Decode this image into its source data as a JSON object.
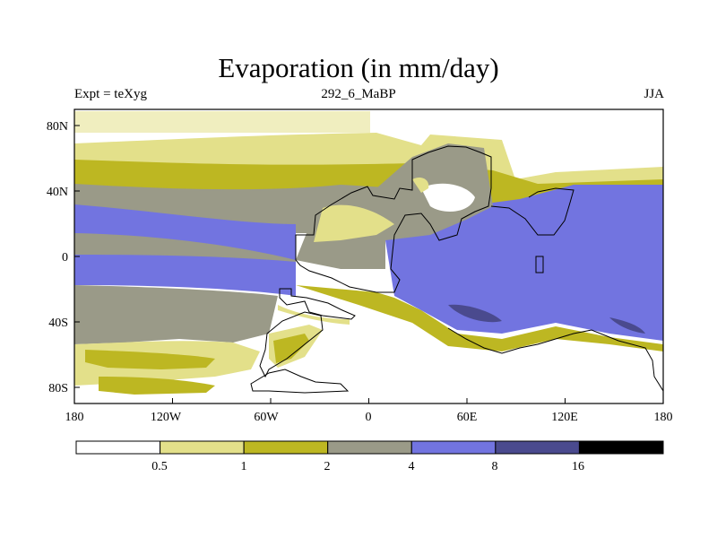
{
  "header": {
    "title": "Evaporation (in mm/day)",
    "left_label": "Expt = teXyg",
    "center_label": "292_6_MaBP",
    "right_label": "JJA"
  },
  "chart_data": {
    "type": "heatmap",
    "title": "Evaporation (in mm/day)",
    "x_ticks": [
      "180",
      "120W",
      "60W",
      "0",
      "60E",
      "120E",
      "180"
    ],
    "y_ticks": [
      "80N",
      "40N",
      "0",
      "40S",
      "80S"
    ],
    "xlim": [
      -180,
      180
    ],
    "ylim": [
      -90,
      90
    ],
    "colorbar": {
      "levels": [
        "0.5",
        "1",
        "2",
        "4",
        "8",
        "16"
      ],
      "colors": [
        "#ffffff",
        "#e3e08a",
        "#bdb722",
        "#9a9a88",
        "#7274e0",
        "#4a4a8e",
        "#000000"
      ]
    }
  }
}
